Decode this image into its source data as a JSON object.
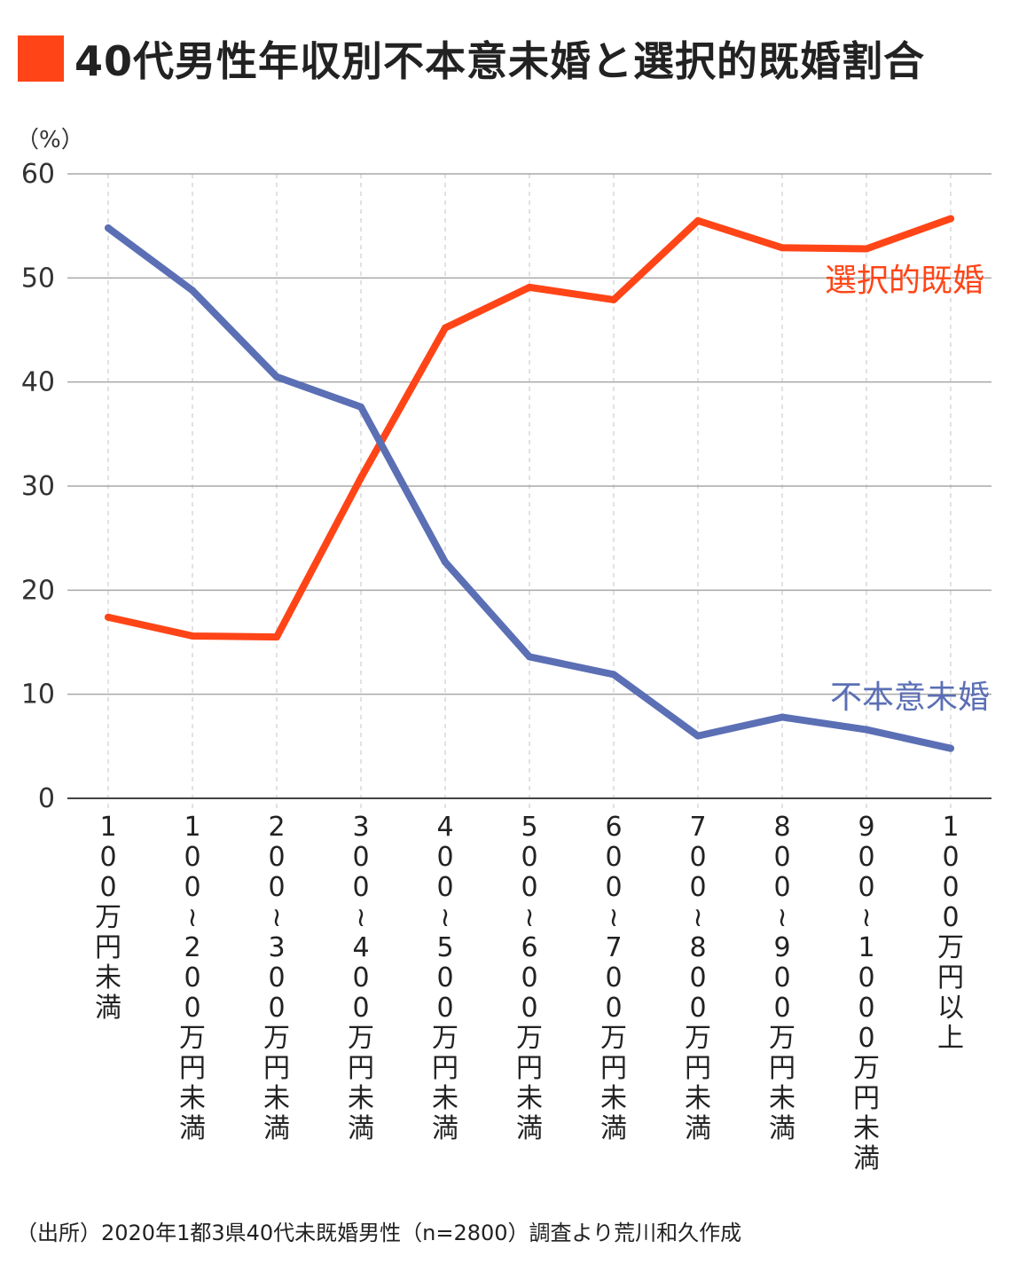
{
  "title": "40代男性年収別不本意未婚と選択的既婚割合",
  "source": "（出所）2020年1都3県40代未既婚男性（n=2800）調査より荒川和久作成",
  "chart_data": {
    "type": "line",
    "unit_label": "（%）",
    "ylim": [
      0,
      60
    ],
    "yticks": [
      0,
      10,
      20,
      30,
      40,
      50,
      60
    ],
    "grid": true,
    "categories": [
      "100万円未満",
      "100〜200万円未満",
      "200〜300万円未満",
      "300〜400万円未満",
      "400〜500万円未満",
      "500〜600万円未満",
      "600〜700万円未満",
      "700〜800万円未満",
      "800〜900万円未満",
      "900〜1000万円未満",
      "1000万円以上"
    ],
    "series": [
      {
        "name": "選択的既婚",
        "color": "#ff4517",
        "values": [
          17.4,
          15.6,
          15.5,
          30.8,
          45.2,
          49.1,
          47.9,
          55.5,
          52.9,
          52.8,
          55.7
        ]
      },
      {
        "name": "不本意未婚",
        "color": "#5b6fb5",
        "values": [
          54.8,
          48.8,
          40.5,
          37.6,
          22.7,
          13.6,
          11.9,
          6.0,
          7.8,
          6.6,
          4.8
        ]
      }
    ]
  }
}
